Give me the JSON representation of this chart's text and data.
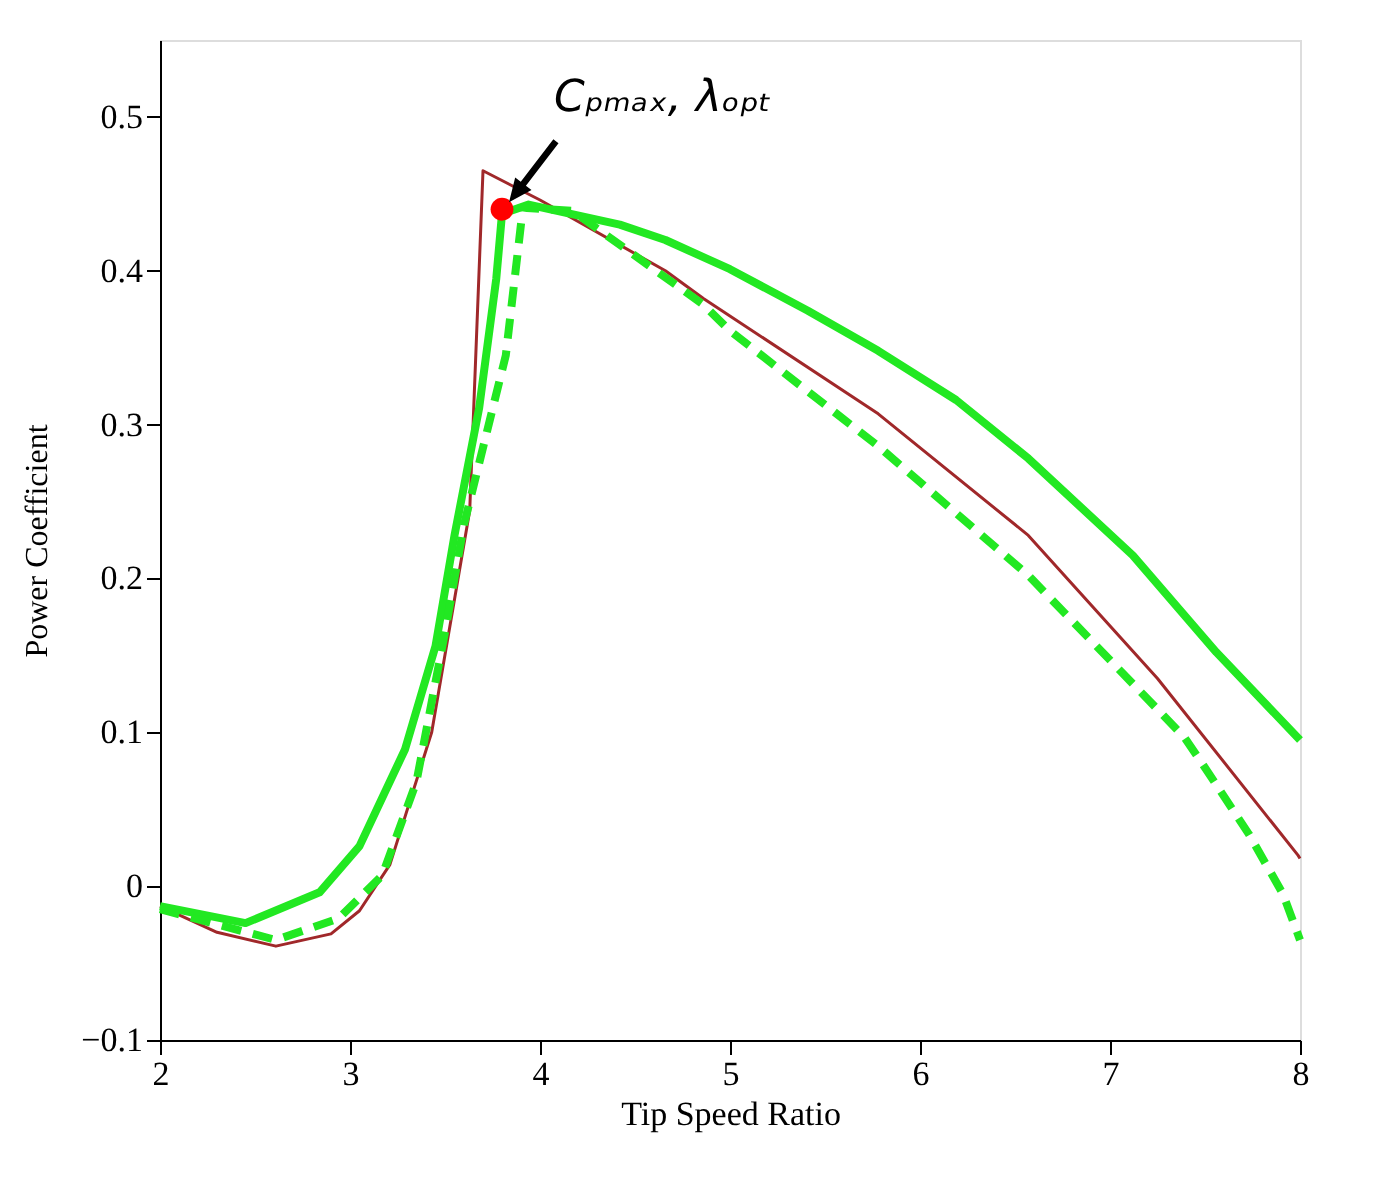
{
  "chart_data": {
    "type": "line",
    "xlabel": "Tip Speed Ratio",
    "ylabel": "Power Coefficient",
    "xlim": [
      2,
      8
    ],
    "ylim": [
      -0.1,
      0.55
    ],
    "xticks": [
      2,
      3,
      4,
      5,
      6,
      7,
      8
    ],
    "yticks": [
      {
        "value": -0.1,
        "label": "−0.1"
      },
      0,
      0.1,
      0.2,
      0.3,
      0.4,
      0.5
    ],
    "grid": false,
    "marker": "none",
    "annotations": [
      {
        "text": "Cₚₘₐₓ, λₒₚₜ",
        "x": 3.8,
        "y": 0.44
      }
    ],
    "series": [
      {
        "color": "#a0282a",
        "line_style": "solid",
        "x": [
          2.0,
          2.3,
          2.61,
          2.9,
          3.05,
          3.21,
          3.43,
          3.63,
          3.7,
          4.0,
          4.66,
          4.86,
          5.78,
          6.57,
          7.25,
          7.99,
          8.0
        ],
        "values": [
          -0.013,
          -0.03,
          -0.039,
          -0.031,
          -0.016,
          0.014,
          0.1,
          0.244,
          0.465,
          0.446,
          0.4,
          0.382,
          0.307,
          0.228,
          0.135,
          0.02,
          0.018
        ]
      },
      {
        "color": "#22e822",
        "line_style": "solid",
        "x": [
          2.0,
          2.45,
          2.84,
          3.05,
          3.29,
          3.45,
          3.55,
          3.68,
          3.77,
          3.8,
          3.94,
          4.42,
          4.66,
          5.0,
          5.41,
          5.78,
          6.19,
          6.57,
          7.12,
          7.56,
          8.0
        ],
        "values": [
          -0.013,
          -0.024,
          -0.004,
          0.026,
          0.089,
          0.156,
          0.228,
          0.311,
          0.395,
          0.437,
          0.443,
          0.43,
          0.42,
          0.401,
          0.374,
          0.348,
          0.316,
          0.278,
          0.215,
          0.152,
          0.095
        ]
      },
      {
        "color": "#22e822",
        "line_style": "dashed",
        "x": [
          2.0,
          2.61,
          2.94,
          3.17,
          3.35,
          3.5,
          3.6,
          3.82,
          3.91,
          4.17,
          4.86,
          5.0,
          5.78,
          6.57,
          7.39,
          7.5,
          7.73,
          7.91,
          8.0
        ],
        "values": [
          -0.015,
          -0.035,
          -0.021,
          0.007,
          0.068,
          0.165,
          0.235,
          0.345,
          0.441,
          0.439,
          0.378,
          0.361,
          0.286,
          0.202,
          0.097,
          0.077,
          0.034,
          -0.005,
          -0.035
        ]
      },
      {
        "type": "scatter",
        "color": "#ff0000",
        "marker": "circle",
        "x": [
          3.8
        ],
        "values": [
          0.44
        ]
      }
    ]
  }
}
